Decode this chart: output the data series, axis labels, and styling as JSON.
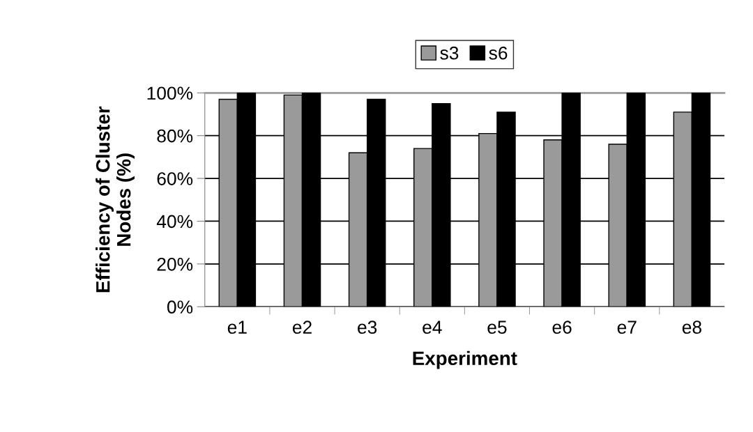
{
  "chart_data": {
    "type": "bar",
    "xlabel": "Experiment",
    "ylabel": "Efficiency of Cluster\nNodes (%)",
    "categories": [
      "e1",
      "e2",
      "e3",
      "e4",
      "e5",
      "e6",
      "e7",
      "e8"
    ],
    "series": [
      {
        "name": "s3",
        "color": "#9a9a9a",
        "values": [
          97,
          99,
          72,
          74,
          81,
          78,
          76,
          91
        ]
      },
      {
        "name": "s6",
        "color": "#000000",
        "values": [
          100,
          100,
          97,
          95,
          91,
          100,
          100,
          100
        ]
      }
    ],
    "ylim": [
      0,
      100
    ],
    "yticks": [
      {
        "value": 0,
        "label": "0%"
      },
      {
        "value": 20,
        "label": "20%"
      },
      {
        "value": 40,
        "label": "40%"
      },
      {
        "value": 60,
        "label": "60%"
      },
      {
        "value": 80,
        "label": "80%"
      },
      {
        "value": 100,
        "label": "100%"
      }
    ],
    "grid": "y",
    "legend": "top"
  }
}
